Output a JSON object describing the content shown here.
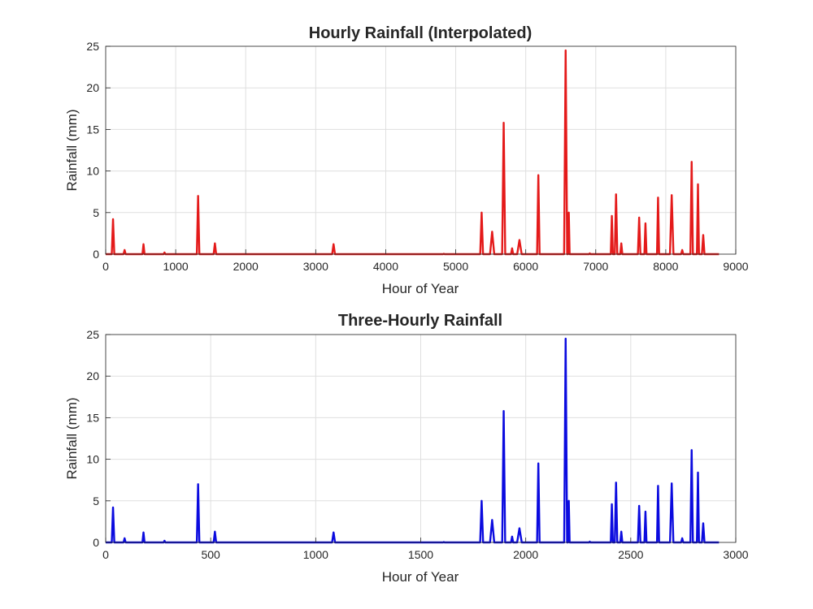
{
  "chart_data": [
    {
      "type": "line",
      "title": "Hourly Rainfall (Interpolated)",
      "xlabel": "Hour of Year",
      "ylabel": "Rainfall (mm)",
      "xlim": [
        0,
        9000
      ],
      "ylim": [
        0,
        25
      ],
      "xticks": [
        "0",
        "1000",
        "2000",
        "3000",
        "4000",
        "5000",
        "6000",
        "7000",
        "8000",
        "9000"
      ],
      "yticks": [
        "0",
        "5",
        "10",
        "15",
        "20",
        "25"
      ],
      "grid": true,
      "color": "#e41a1a",
      "x_end": 8760,
      "peaks": [
        {
          "x": 105,
          "y": 4.2,
          "w": 18
        },
        {
          "x": 270,
          "y": 0.5,
          "w": 15
        },
        {
          "x": 540,
          "y": 1.2,
          "w": 15
        },
        {
          "x": 840,
          "y": 0.2,
          "w": 12
        },
        {
          "x": 1320,
          "y": 7.0,
          "w": 18
        },
        {
          "x": 1560,
          "y": 1.3,
          "w": 18
        },
        {
          "x": 3255,
          "y": 1.2,
          "w": 20
        },
        {
          "x": 4830,
          "y": 0.05,
          "w": 10
        },
        {
          "x": 5370,
          "y": 5.0,
          "w": 20
        },
        {
          "x": 5520,
          "y": 2.7,
          "w": 30
        },
        {
          "x": 5685,
          "y": 15.8,
          "w": 22
        },
        {
          "x": 5805,
          "y": 0.7,
          "w": 15
        },
        {
          "x": 5910,
          "y": 1.7,
          "w": 32
        },
        {
          "x": 6180,
          "y": 9.5,
          "w": 18
        },
        {
          "x": 6570,
          "y": 24.5,
          "w": 22
        },
        {
          "x": 6615,
          "y": 5.0,
          "w": 12
        },
        {
          "x": 6915,
          "y": 0.1,
          "w": 10
        },
        {
          "x": 7230,
          "y": 4.6,
          "w": 15
        },
        {
          "x": 7290,
          "y": 7.2,
          "w": 18
        },
        {
          "x": 7365,
          "y": 1.3,
          "w": 15
        },
        {
          "x": 7620,
          "y": 4.4,
          "w": 18
        },
        {
          "x": 7710,
          "y": 3.7,
          "w": 15
        },
        {
          "x": 7890,
          "y": 6.8,
          "w": 15
        },
        {
          "x": 8085,
          "y": 7.1,
          "w": 25
        },
        {
          "x": 8235,
          "y": 0.5,
          "w": 15
        },
        {
          "x": 8370,
          "y": 11.1,
          "w": 18
        },
        {
          "x": 8460,
          "y": 8.4,
          "w": 15
        },
        {
          "x": 8535,
          "y": 2.3,
          "w": 18
        }
      ]
    },
    {
      "type": "line",
      "title": "Three-Hourly Rainfall",
      "xlabel": "Hour of Year",
      "ylabel": "Rainfall (mm)",
      "xlim": [
        0,
        3000
      ],
      "ylim": [
        0,
        25
      ],
      "xticks": [
        "0",
        "500",
        "1000",
        "1500",
        "2000",
        "2500",
        "3000"
      ],
      "yticks": [
        "0",
        "5",
        "10",
        "15",
        "20",
        "25"
      ],
      "grid": true,
      "color": "#0b0bdf",
      "x_end": 2920,
      "peaks": [
        {
          "x": 35,
          "y": 4.2,
          "w": 6
        },
        {
          "x": 90,
          "y": 0.5,
          "w": 5
        },
        {
          "x": 180,
          "y": 1.2,
          "w": 5
        },
        {
          "x": 280,
          "y": 0.2,
          "w": 4
        },
        {
          "x": 440,
          "y": 7.0,
          "w": 6
        },
        {
          "x": 520,
          "y": 1.3,
          "w": 6
        },
        {
          "x": 1085,
          "y": 1.2,
          "w": 7
        },
        {
          "x": 1610,
          "y": 0.05,
          "w": 3
        },
        {
          "x": 1790,
          "y": 5.0,
          "w": 7
        },
        {
          "x": 1840,
          "y": 2.7,
          "w": 10
        },
        {
          "x": 1895,
          "y": 15.8,
          "w": 7
        },
        {
          "x": 1935,
          "y": 0.7,
          "w": 5
        },
        {
          "x": 1970,
          "y": 1.7,
          "w": 11
        },
        {
          "x": 2060,
          "y": 9.5,
          "w": 6
        },
        {
          "x": 2190,
          "y": 24.5,
          "w": 7
        },
        {
          "x": 2205,
          "y": 5.0,
          "w": 4
        },
        {
          "x": 2305,
          "y": 0.1,
          "w": 3
        },
        {
          "x": 2410,
          "y": 4.6,
          "w": 5
        },
        {
          "x": 2430,
          "y": 7.2,
          "w": 6
        },
        {
          "x": 2455,
          "y": 1.3,
          "w": 5
        },
        {
          "x": 2540,
          "y": 4.4,
          "w": 6
        },
        {
          "x": 2570,
          "y": 3.7,
          "w": 5
        },
        {
          "x": 2630,
          "y": 6.8,
          "w": 5
        },
        {
          "x": 2695,
          "y": 7.1,
          "w": 8
        },
        {
          "x": 2745,
          "y": 0.5,
          "w": 5
        },
        {
          "x": 2790,
          "y": 11.1,
          "w": 6
        },
        {
          "x": 2820,
          "y": 8.4,
          "w": 5
        },
        {
          "x": 2845,
          "y": 2.3,
          "w": 6
        }
      ]
    }
  ]
}
